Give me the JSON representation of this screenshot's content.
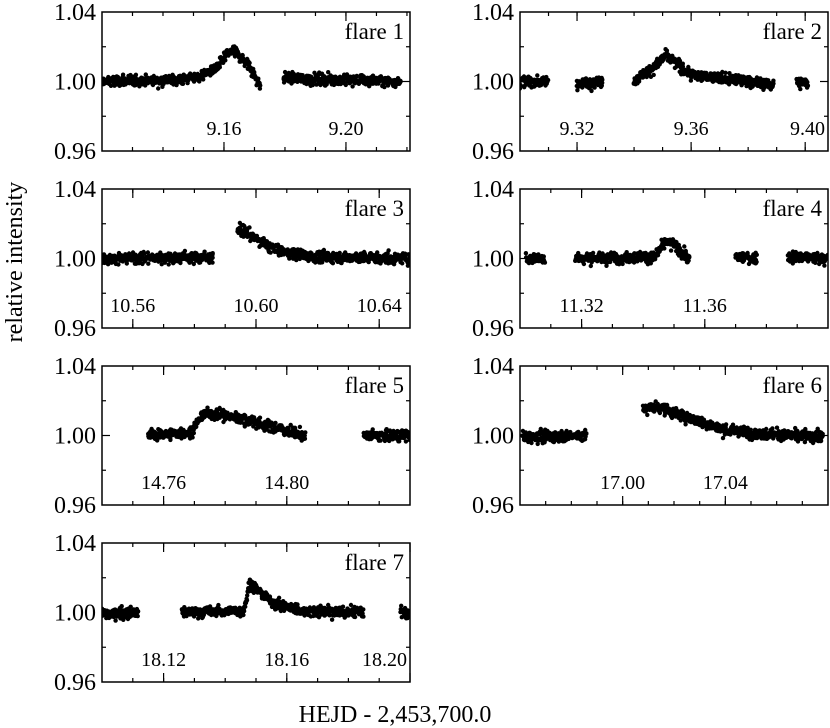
{
  "figure": {
    "ylabel": "relative intensity",
    "xlabel": "HEJD - 2,453,700.0"
  },
  "chart_data": [
    {
      "type": "scatter",
      "label": "flare 1",
      "xlim": [
        9.12,
        9.221
      ],
      "ylim": [
        0.96,
        1.04
      ],
      "yticks": [
        "0.96",
        "1.00",
        "1.04"
      ],
      "xticks": [
        {
          "x": 9.16,
          "label": "9.16"
        },
        {
          "x": 9.2,
          "label": "9.20"
        }
      ],
      "segments": [
        {
          "x_start": 9.12,
          "x_end": 9.145,
          "profile": [
            [
              9.12,
              1.0
            ],
            [
              9.145,
              1.001
            ]
          ]
        },
        {
          "x_start": 9.145,
          "x_end": 9.16,
          "profile": [
            [
              9.145,
              1.001
            ],
            [
              9.152,
              1.003
            ],
            [
              9.158,
              1.008
            ],
            [
              9.16,
              1.014
            ]
          ]
        },
        {
          "x_start": 9.16,
          "x_end": 9.172,
          "profile": [
            [
              9.16,
              1.014
            ],
            [
              9.163,
              1.018
            ],
            [
              9.168,
              1.01
            ],
            [
              9.172,
              0.997
            ]
          ]
        },
        {
          "x_start": 9.1795,
          "x_end": 9.218,
          "profile": [
            [
              9.1795,
              1.002
            ],
            [
              9.218,
              1.0
            ]
          ]
        }
      ]
    },
    {
      "type": "scatter",
      "label": "flare 2",
      "xlim": [
        9.3,
        9.408
      ],
      "ylim": [
        0.96,
        1.04
      ],
      "yticks": [
        "0.96",
        "1.00",
        "1.04"
      ],
      "xticks": [
        {
          "x": 9.32,
          "label": "9.32"
        },
        {
          "x": 9.36,
          "label": "9.36"
        },
        {
          "x": 9.4,
          "label": "9.40"
        }
      ],
      "segments": [
        {
          "x_start": 9.3,
          "x_end": 9.31,
          "profile": [
            [
              9.3,
              1.0
            ],
            [
              9.31,
              1.0
            ]
          ]
        },
        {
          "x_start": 9.32,
          "x_end": 9.329,
          "profile": [
            [
              9.32,
              0.999
            ],
            [
              9.329,
              1.0
            ]
          ]
        },
        {
          "x_start": 9.34,
          "x_end": 9.351,
          "profile": [
            [
              9.34,
              1.001
            ],
            [
              9.347,
              1.008
            ],
            [
              9.351,
              1.015
            ]
          ]
        },
        {
          "x_start": 9.351,
          "x_end": 9.389,
          "profile": [
            [
              9.351,
              1.015
            ],
            [
              9.355,
              1.01
            ],
            [
              9.36,
              1.004
            ],
            [
              9.375,
              1.001
            ],
            [
              9.389,
              0.998
            ]
          ]
        },
        {
          "x_start": 9.397,
          "x_end": 9.401,
          "profile": [
            [
              9.397,
              1.0
            ],
            [
              9.401,
              0.999
            ]
          ]
        }
      ]
    },
    {
      "type": "scatter",
      "label": "flare 3",
      "xlim": [
        10.55,
        10.65
      ],
      "ylim": [
        0.96,
        1.04
      ],
      "yticks": [
        "0.96",
        "1.00",
        "1.04"
      ],
      "xticks": [
        {
          "x": 10.56,
          "label": "10.56"
        },
        {
          "x": 10.6,
          "label": "10.60"
        },
        {
          "x": 10.64,
          "label": "10.64"
        }
      ],
      "segments": [
        {
          "x_start": 10.55,
          "x_end": 10.586,
          "profile": [
            [
              10.55,
              1.0
            ],
            [
              10.586,
              1.001
            ]
          ]
        },
        {
          "x_start": 10.594,
          "x_end": 10.65,
          "profile": [
            [
              10.594,
              1.017
            ],
            [
              10.598,
              1.014
            ],
            [
              10.602,
              1.009
            ],
            [
              10.608,
              1.004
            ],
            [
              10.62,
              1.001
            ],
            [
              10.65,
              1.0
            ]
          ]
        }
      ]
    },
    {
      "type": "scatter",
      "label": "flare 4",
      "xlim": [
        11.3,
        11.4
      ],
      "ylim": [
        0.96,
        1.04
      ],
      "yticks": [
        "0.96",
        "1.00",
        "1.04"
      ],
      "xticks": [
        {
          "x": 11.32,
          "label": "11.32"
        },
        {
          "x": 11.36,
          "label": "11.36"
        }
      ],
      "segments": [
        {
          "x_start": 11.302,
          "x_end": 11.308,
          "profile": [
            [
              11.302,
              1.0
            ],
            [
              11.308,
              1.0
            ]
          ]
        },
        {
          "x_start": 11.318,
          "x_end": 11.344,
          "profile": [
            [
              11.318,
              1.0
            ],
            [
              11.344,
              1.001
            ]
          ]
        },
        {
          "x_start": 11.344,
          "x_end": 11.355,
          "profile": [
            [
              11.344,
              1.001
            ],
            [
              11.347,
              1.009
            ],
            [
              11.35,
              1.008
            ],
            [
              11.355,
              0.999
            ]
          ]
        },
        {
          "x_start": 11.37,
          "x_end": 11.377,
          "profile": [
            [
              11.37,
              1.001
            ],
            [
              11.377,
              1.0
            ]
          ]
        },
        {
          "x_start": 11.387,
          "x_end": 11.4,
          "profile": [
            [
              11.387,
              1.001
            ],
            [
              11.4,
              1.0
            ]
          ]
        }
      ]
    },
    {
      "type": "scatter",
      "label": "flare 5",
      "xlim": [
        14.74,
        14.84
      ],
      "ylim": [
        0.96,
        1.04
      ],
      "yticks": [
        "0.96",
        "1.00",
        "1.04"
      ],
      "xticks": [
        {
          "x": 14.76,
          "label": "14.76"
        },
        {
          "x": 14.8,
          "label": "14.80"
        }
      ],
      "segments": [
        {
          "x_start": 14.755,
          "x_end": 14.769,
          "profile": [
            [
              14.755,
              1.0
            ],
            [
              14.769,
              1.002
            ]
          ]
        },
        {
          "x_start": 14.769,
          "x_end": 14.773,
          "profile": [
            [
              14.769,
              1.002
            ],
            [
              14.773,
              1.013
            ]
          ]
        },
        {
          "x_start": 14.773,
          "x_end": 14.806,
          "profile": [
            [
              14.773,
              1.013
            ],
            [
              14.778,
              1.012
            ],
            [
              14.785,
              1.01
            ],
            [
              14.795,
              1.005
            ],
            [
              14.806,
              1.0
            ]
          ]
        },
        {
          "x_start": 14.825,
          "x_end": 14.84,
          "profile": [
            [
              14.825,
              1.0
            ],
            [
              14.84,
              1.0
            ]
          ]
        }
      ]
    },
    {
      "type": "scatter",
      "label": "flare 6",
      "xlim": [
        16.96,
        17.08
      ],
      "ylim": [
        0.96,
        1.04
      ],
      "yticks": [
        "0.96",
        "1.00",
        "1.04"
      ],
      "xticks": [
        {
          "x": 17.0,
          "label": "17.00"
        },
        {
          "x": 17.04,
          "label": "17.04"
        }
      ],
      "segments": [
        {
          "x_start": 16.961,
          "x_end": 16.986,
          "profile": [
            [
              16.961,
              0.999
            ],
            [
              16.986,
              1.0
            ]
          ]
        },
        {
          "x_start": 17.008,
          "x_end": 17.078,
          "profile": [
            [
              17.008,
              1.015
            ],
            [
              17.013,
              1.017
            ],
            [
              17.02,
              1.013
            ],
            [
              17.03,
              1.008
            ],
            [
              17.04,
              1.003
            ],
            [
              17.055,
              1.001
            ],
            [
              17.078,
              0.999
            ]
          ]
        }
      ]
    },
    {
      "type": "scatter",
      "label": "flare 7",
      "xlim": [
        18.1,
        18.2
      ],
      "ylim": [
        0.96,
        1.04
      ],
      "yticks": [
        "0.96",
        "1.00",
        "1.04"
      ],
      "xticks": [
        {
          "x": 18.12,
          "label": "18.12"
        },
        {
          "x": 18.16,
          "label": "18.16"
        },
        {
          "x": 18.2,
          "label": "18.20"
        }
      ],
      "segments": [
        {
          "x_start": 18.1,
          "x_end": 18.112,
          "profile": [
            [
              18.1,
              0.999
            ],
            [
              18.112,
              1.0
            ]
          ]
        },
        {
          "x_start": 18.126,
          "x_end": 18.146,
          "profile": [
            [
              18.126,
              1.0
            ],
            [
              18.146,
              1.001
            ]
          ]
        },
        {
          "x_start": 18.146,
          "x_end": 18.185,
          "profile": [
            [
              18.146,
              1.001
            ],
            [
              18.148,
              1.017
            ],
            [
              18.151,
              1.012
            ],
            [
              18.156,
              1.005
            ],
            [
              18.165,
              1.001
            ],
            [
              18.185,
              1.0
            ]
          ]
        },
        {
          "x_start": 18.197,
          "x_end": 18.2,
          "profile": [
            [
              18.197,
              1.0
            ],
            [
              18.2,
              0.999
            ]
          ]
        }
      ]
    }
  ]
}
